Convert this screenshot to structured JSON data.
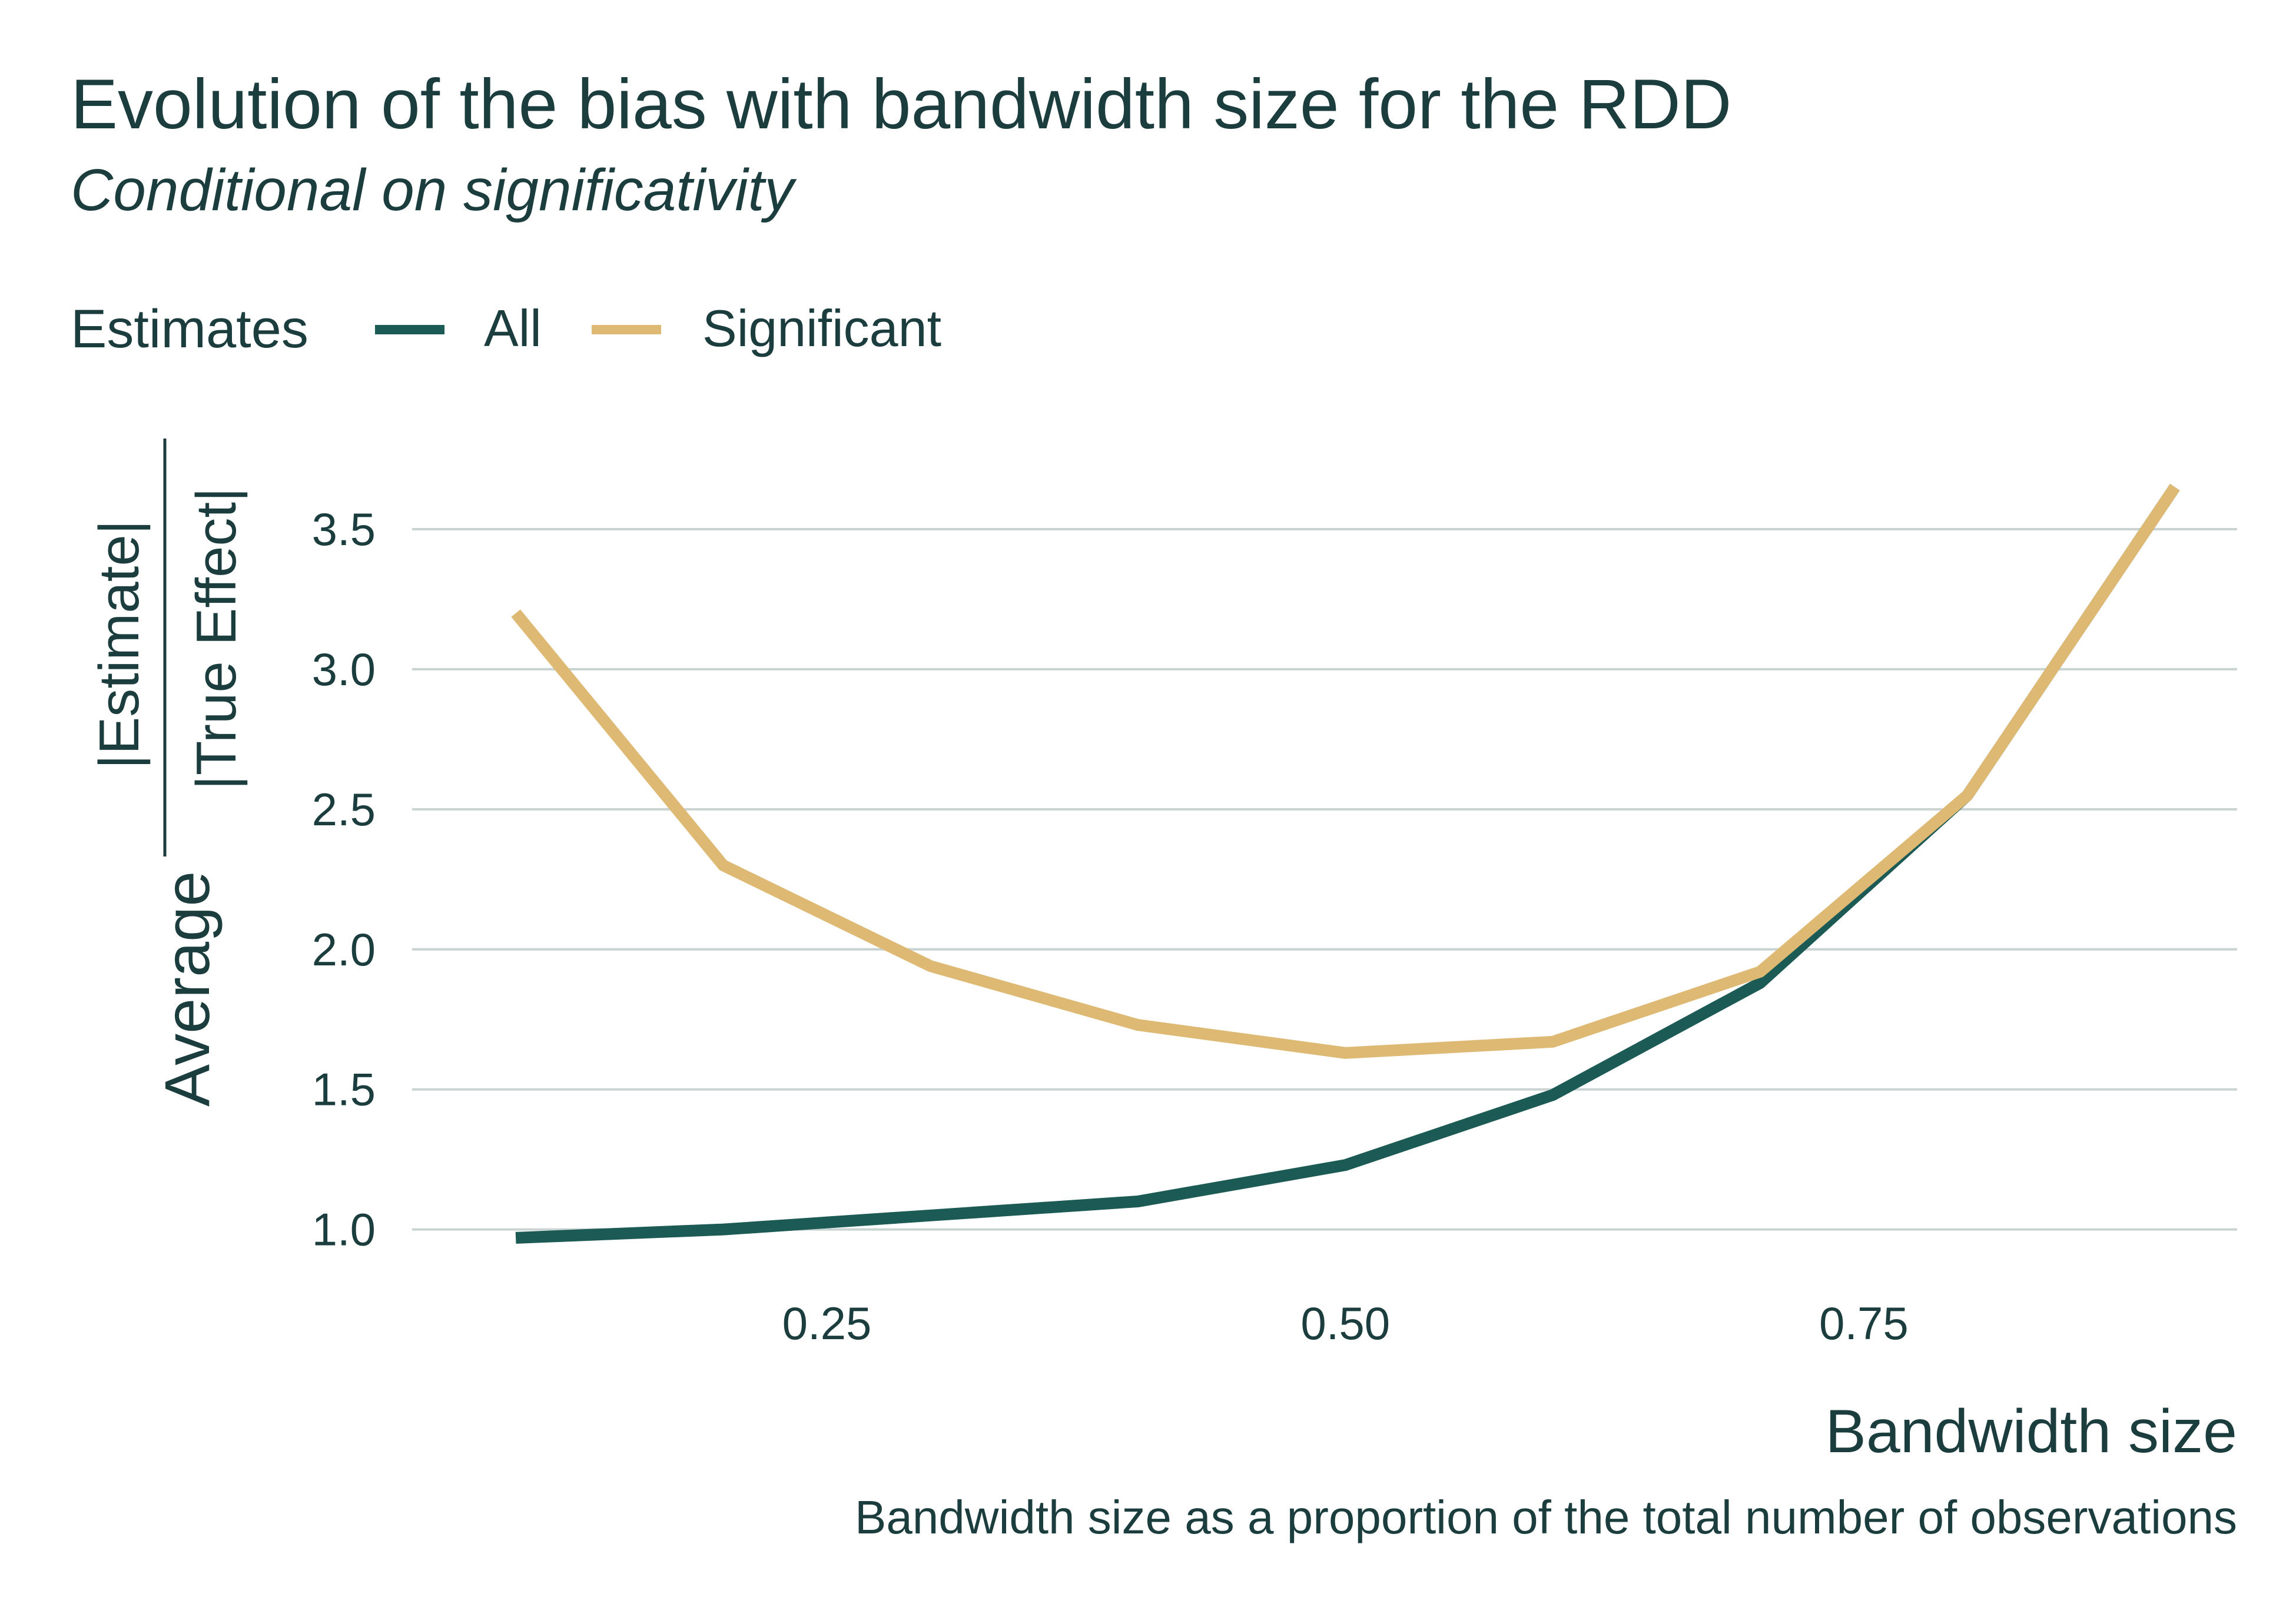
{
  "colors": {
    "text": "#1c3d3d",
    "grid": "#c9d3d2",
    "all": "#1c5a55",
    "significant": "#deb974"
  },
  "chart_data": {
    "type": "line",
    "title": "Evolution of the bias with bandwidth size for the RDD",
    "subtitle": "Conditional on significativity",
    "xlabel": "Bandwidth size",
    "caption": "Bandwidth size as a proportion of the total number of observations",
    "ylabel": {
      "prefix": "Average",
      "numerator": "|Estimate|",
      "denominator": "|True Effect|"
    },
    "legend": {
      "title": "Estimates",
      "position": "top-left"
    },
    "xlim": [
      0.05,
      0.93
    ],
    "ylim": [
      0.85,
      3.75
    ],
    "x_ticks": [
      {
        "value": 0.25,
        "label": "0.25"
      },
      {
        "value": 0.5,
        "label": "0.50"
      },
      {
        "value": 0.75,
        "label": "0.75"
      }
    ],
    "y_ticks": [
      {
        "value": 1.0,
        "label": "1.0"
      },
      {
        "value": 1.5,
        "label": "1.5"
      },
      {
        "value": 2.0,
        "label": "2.0"
      },
      {
        "value": 2.5,
        "label": "2.5"
      },
      {
        "value": 3.0,
        "label": "3.0"
      },
      {
        "value": 3.5,
        "label": "3.5"
      }
    ],
    "grid": "horizontal",
    "x": [
      0.1,
      0.2,
      0.3,
      0.4,
      0.5,
      0.6,
      0.7,
      0.8,
      0.9
    ],
    "series": [
      {
        "name": "All",
        "color": "#1c5a55",
        "values": [
          0.97,
          1.0,
          1.05,
          1.1,
          1.23,
          1.48,
          1.88,
          2.55,
          3.65
        ]
      },
      {
        "name": "Significant",
        "color": "#deb974",
        "values": [
          3.2,
          2.3,
          1.94,
          1.73,
          1.63,
          1.67,
          1.92,
          2.55,
          3.65
        ]
      }
    ]
  }
}
